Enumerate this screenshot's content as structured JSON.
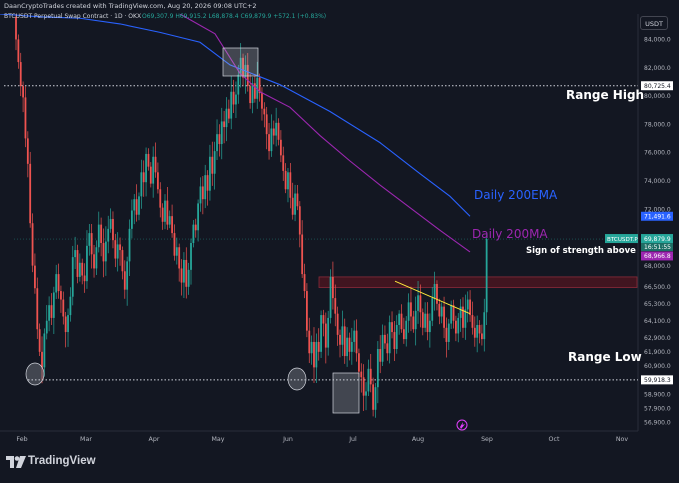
{
  "header": {
    "creator": "DaanCryptoTrades created with TradingView.com, Aug 20, 2026 09:08 UTC+2",
    "symbol_line": "BTCUSDT Perpetual Swap Contract · 1D · OKX",
    "ohlc": "O69,307.9 H69,915.2 L68,878.4 C69,879.9 +572.1 (+0.83%)"
  },
  "unit_label": "USDT",
  "brand": "TradingView",
  "colors": {
    "background": "#131722",
    "up": "#26a69a",
    "down": "#ef5350",
    "ema": "#2962ff",
    "ma": "#9c27b0",
    "trendline": "#ffeb3b",
    "text": "#d1d4dc",
    "zone": "#4a1520"
  },
  "chart_data": {
    "type": "candlestick",
    "x_axis_labels": [
      "Feb",
      "Mar",
      "Apr",
      "May",
      "Jun",
      "Jul",
      "Aug",
      "Sep",
      "Oct",
      "Nov"
    ],
    "y_axis_labels": [
      "84,000.0",
      "82,000.0",
      "80,000.0",
      "78,000.0",
      "76,000.0",
      "74,000.0",
      "72,000.0",
      "70,000.0",
      "68,000.0",
      "66,500.0",
      "65,300.0",
      "64,100.0",
      "62,900.0",
      "61,900.0",
      "60,900.0",
      "59,900.0",
      "58,900.0",
      "57,900.0",
      "56,900.0"
    ],
    "ylim": [
      56300,
      85800
    ],
    "price_tags": {
      "range_high": "80,725.4",
      "ema": "71,491.6",
      "last_symbol": "BTCUSDT.P",
      "last_price": "69,879.9",
      "countdown": "16:51:55",
      "ma": "68,966.8",
      "range_low": "59,918.3"
    },
    "levels": {
      "range_high": 80725.4,
      "range_low": 59918.3,
      "zone_top": 67200,
      "zone_bottom": 66450
    },
    "annotations": {
      "range_high": "Range High",
      "range_low": "Range Low",
      "ema": "Daily 200EMA",
      "ma": "Daily 200MA",
      "strength": "Sign of strength above"
    },
    "closes": [
      84000,
      82400,
      80700,
      79900,
      77000,
      75200,
      71000,
      68000,
      66400,
      63500,
      61900,
      60800,
      63200,
      64100,
      65200,
      64300,
      66100,
      67400,
      66200,
      65600,
      64400,
      63300,
      64500,
      65800,
      68600,
      69100,
      67200,
      68200,
      67300,
      66900,
      69400,
      70300,
      68800,
      67800,
      69300,
      70900,
      69600,
      68300,
      69700,
      70600,
      71300,
      69800,
      68500,
      69500,
      69100,
      67600,
      66300,
      68300,
      70600,
      71900,
      72700,
      71600,
      72900,
      74600,
      73900,
      75900,
      75000,
      73800,
      75700,
      74600,
      73400,
      72100,
      71100,
      72600,
      70900,
      71500,
      70300,
      68700,
      69300,
      67800,
      66800,
      68400,
      66500,
      67700,
      69600,
      70900,
      70500,
      72400,
      73600,
      72700,
      74400,
      73300,
      75700,
      74500,
      76100,
      77300,
      76600,
      78200,
      77800,
      79100,
      78400,
      80300,
      79400,
      80100,
      81500,
      82700,
      81300,
      82200,
      80700,
      79500,
      80900,
      79800,
      81300,
      80200,
      79100,
      78700,
      77300,
      76100,
      77700,
      77200,
      78100,
      76900,
      75800,
      74700,
      73400,
      74600,
      72800,
      71600,
      73100,
      72200,
      70200,
      67400,
      66200,
      63400,
      61800,
      62600,
      60800,
      62600,
      61900,
      64500,
      63900,
      62200,
      64300,
      67200,
      65700,
      64600,
      63100,
      62400,
      63700,
      61600,
      62900,
      61900,
      62600,
      63400,
      61800,
      60500,
      60100,
      58800,
      59100,
      60700,
      59600,
      57800,
      59400,
      62100,
      61200,
      63100,
      62500,
      61800,
      64000,
      63300,
      62100,
      63800,
      64600,
      63500,
      62800,
      64100,
      65400,
      64400,
      63500,
      64800,
      65900,
      64700,
      63600,
      64600,
      63300,
      64100,
      65700,
      66700,
      65300,
      64400,
      65100,
      63600,
      62600,
      63900,
      65200,
      64100,
      63200,
      64300,
      65100,
      63600,
      64900,
      65600,
      64500,
      63600,
      62900,
      63800,
      63200,
      62800,
      64700,
      69879.9
    ],
    "ema_200": [
      [
        0,
        85800
      ],
      [
        40,
        85600
      ],
      [
        80,
        85500
      ],
      [
        120,
        85100
      ],
      [
        160,
        84500
      ],
      [
        200,
        83800
      ],
      [
        230,
        82200
      ],
      [
        280,
        80800
      ],
      [
        330,
        78900
      ],
      [
        380,
        76700
      ],
      [
        420,
        74500
      ],
      [
        450,
        72900
      ],
      [
        470,
        71491.6
      ]
    ],
    "ma_200": [
      [
        180,
        85800
      ],
      [
        215,
        84400
      ],
      [
        240,
        81600
      ],
      [
        260,
        80300
      ],
      [
        290,
        79200
      ],
      [
        320,
        77200
      ],
      [
        350,
        75400
      ],
      [
        380,
        73700
      ],
      [
        410,
        72100
      ],
      [
        440,
        70500
      ],
      [
        470,
        68966.8
      ]
    ],
    "trendline": {
      "from": [
        395,
        66900
      ],
      "to": [
        470,
        64600
      ]
    }
  }
}
